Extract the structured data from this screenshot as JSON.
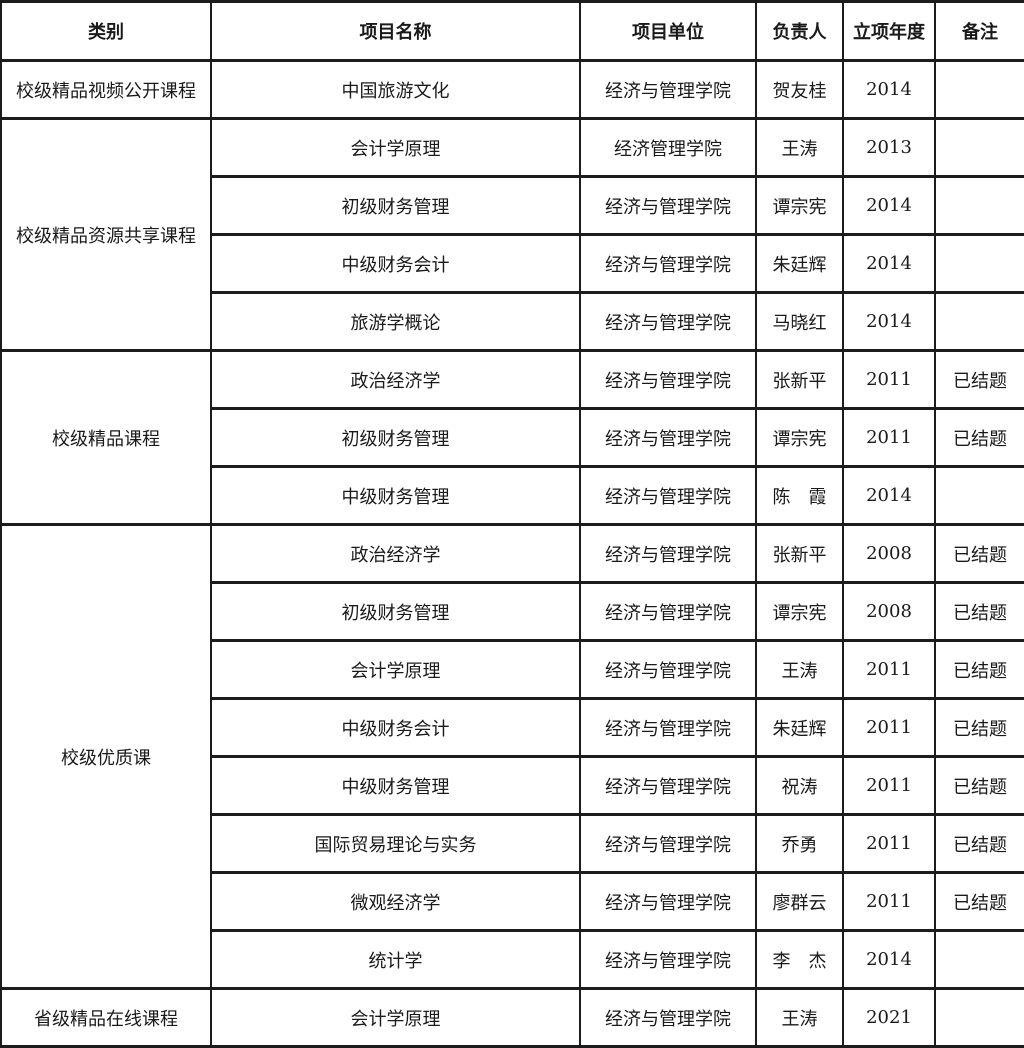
{
  "table": {
    "title": "course-projects-table",
    "colors": {
      "border": "#1c1c1c",
      "text": "#1a1a1a",
      "background": "#ffffff"
    },
    "headers": [
      "类别",
      "项目名称",
      "项目单位",
      "负责人",
      "立项年度",
      "备注"
    ],
    "groups": [
      {
        "category": "校级精品视频公开课程",
        "rows": [
          {
            "name": "中国旅游文化",
            "unit": "经济与管理学院",
            "leader": "贺友桂",
            "year": "2014",
            "remark": ""
          }
        ]
      },
      {
        "category": "校级精品资源共享课程",
        "rows": [
          {
            "name": "会计学原理",
            "unit": "经济管理学院",
            "leader": "王涛",
            "year": "2013",
            "remark": ""
          },
          {
            "name": "初级财务管理",
            "unit": "经济与管理学院",
            "leader": "谭宗宪",
            "year": "2014",
            "remark": ""
          },
          {
            "name": "中级财务会计",
            "unit": "经济与管理学院",
            "leader": "朱廷辉",
            "year": "2014",
            "remark": ""
          },
          {
            "name": "旅游学概论",
            "unit": "经济与管理学院",
            "leader": "马晓红",
            "year": "2014",
            "remark": ""
          }
        ]
      },
      {
        "category": "校级精品课程",
        "rows": [
          {
            "name": "政治经济学",
            "unit": "经济与管理学院",
            "leader": "张新平",
            "year": "2011",
            "remark": "已结题"
          },
          {
            "name": "初级财务管理",
            "unit": "经济与管理学院",
            "leader": "谭宗宪",
            "year": "2011",
            "remark": "已结题"
          },
          {
            "name": "中级财务管理",
            "unit": "经济与管理学院",
            "leader": "陈　霞",
            "year": "2014",
            "remark": ""
          }
        ]
      },
      {
        "category": "校级优质课",
        "rows": [
          {
            "name": "政治经济学",
            "unit": "经济与管理学院",
            "leader": "张新平",
            "year": "2008",
            "remark": "已结题"
          },
          {
            "name": "初级财务管理",
            "unit": "经济与管理学院",
            "leader": "谭宗宪",
            "year": "2008",
            "remark": "已结题"
          },
          {
            "name": "会计学原理",
            "unit": "经济与管理学院",
            "leader": "王涛",
            "year": "2011",
            "remark": "已结题"
          },
          {
            "name": "中级财务会计",
            "unit": "经济与管理学院",
            "leader": "朱廷辉",
            "year": "2011",
            "remark": "已结题"
          },
          {
            "name": "中级财务管理",
            "unit": "经济与管理学院",
            "leader": "祝涛",
            "year": "2011",
            "remark": "已结题"
          },
          {
            "name": "国际贸易理论与实务",
            "unit": "经济与管理学院",
            "leader": "乔勇",
            "year": "2011",
            "remark": "已结题"
          },
          {
            "name": "微观经济学",
            "unit": "经济与管理学院",
            "leader": "廖群云",
            "year": "2011",
            "remark": "已结题"
          },
          {
            "name": "统计学",
            "unit": "经济与管理学院",
            "leader": "李　杰",
            "year": "2014",
            "remark": ""
          }
        ]
      },
      {
        "category": "省级精品在线课程",
        "rows": [
          {
            "name": "会计学原理",
            "unit": "经济与管理学院",
            "leader": "王涛",
            "year": "2021",
            "remark": ""
          }
        ]
      }
    ]
  }
}
